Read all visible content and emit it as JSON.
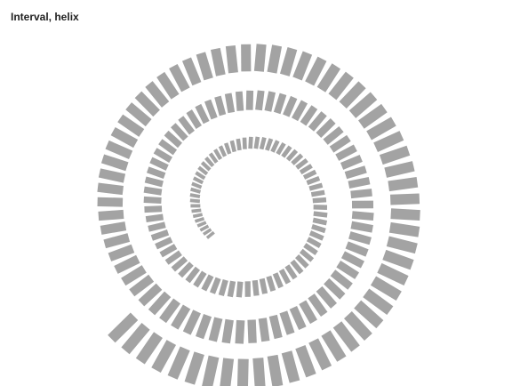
{
  "chart_data": {
    "type": "bar",
    "title": "Interval, helix",
    "coordinate_system": "helix",
    "turns": 3,
    "bar_color": "#a3a3a3",
    "start_angle_deg": 141,
    "series": [
      {
        "values": [
          0.05,
          0.06,
          0.07,
          0.08,
          0.09,
          0.1,
          0.11,
          0.12,
          0.13,
          0.14,
          0.15,
          0.16,
          0.17,
          0.18,
          0.19,
          0.2,
          0.21,
          0.22,
          0.23,
          0.24,
          0.25,
          0.26,
          0.27,
          0.28,
          0.29,
          0.3,
          0.31,
          0.32,
          0.33,
          0.34,
          0.35,
          0.36,
          0.37,
          0.38,
          0.39,
          0.4,
          0.41,
          0.42,
          0.43,
          0.44,
          0.45,
          0.46,
          0.47,
          0.48,
          0.49,
          0.5,
          0.51,
          0.52,
          0.53,
          0.54,
          0.55,
          0.56,
          0.57,
          0.58,
          0.59,
          0.6,
          0.61,
          0.62,
          0.63,
          0.64,
          0.65,
          0.66,
          0.67,
          0.68,
          0.69,
          0.7,
          0.71,
          0.72,
          0.73,
          0.74,
          0.75,
          0.76,
          0.77,
          0.78,
          0.79,
          0.8,
          0.81,
          0.82,
          0.83,
          0.84,
          0.85,
          0.86,
          0.87,
          0.88,
          0.89,
          0.9,
          0.91,
          0.92,
          0.93,
          0.94,
          0.95,
          0.96,
          0.97,
          0.98,
          0.99,
          1.0,
          1.01,
          1.02,
          1.03,
          1.04,
          1.05,
          1.06,
          1.07,
          1.08,
          1.09,
          1.1,
          1.11,
          1.12,
          1.13,
          1.14,
          1.15,
          1.16,
          1.17,
          1.18,
          1.19,
          1.2,
          1.21,
          1.22,
          1.23,
          1.24,
          1.25,
          1.26,
          1.27,
          1.28,
          1.29,
          1.3,
          1.31,
          1.32,
          1.33,
          1.34,
          1.35,
          1.36,
          1.37,
          1.38,
          1.39,
          1.4,
          1.41,
          1.42,
          1.43,
          1.44,
          1.45,
          1.46,
          1.47,
          1.48,
          1.49,
          1.5,
          1.51,
          1.52,
          1.53,
          1.54,
          1.55,
          1.56,
          1.57,
          1.58,
          1.59,
          1.6,
          1.61,
          1.62,
          1.63,
          1.64,
          1.65,
          1.66,
          1.67,
          1.68,
          1.69,
          1.7,
          1.71,
          1.72,
          1.73,
          1.74,
          1.75,
          1.76,
          1.77,
          1.78,
          1.79,
          1.8,
          1.81,
          1.82,
          1.83,
          1.84,
          1.85,
          1.86,
          1.87,
          1.88,
          1.89,
          1.9,
          1.91,
          1.92,
          1.93,
          1.94,
          1.95,
          1.96,
          1.97,
          1.98,
          1.99,
          2.0
        ]
      }
    ]
  }
}
